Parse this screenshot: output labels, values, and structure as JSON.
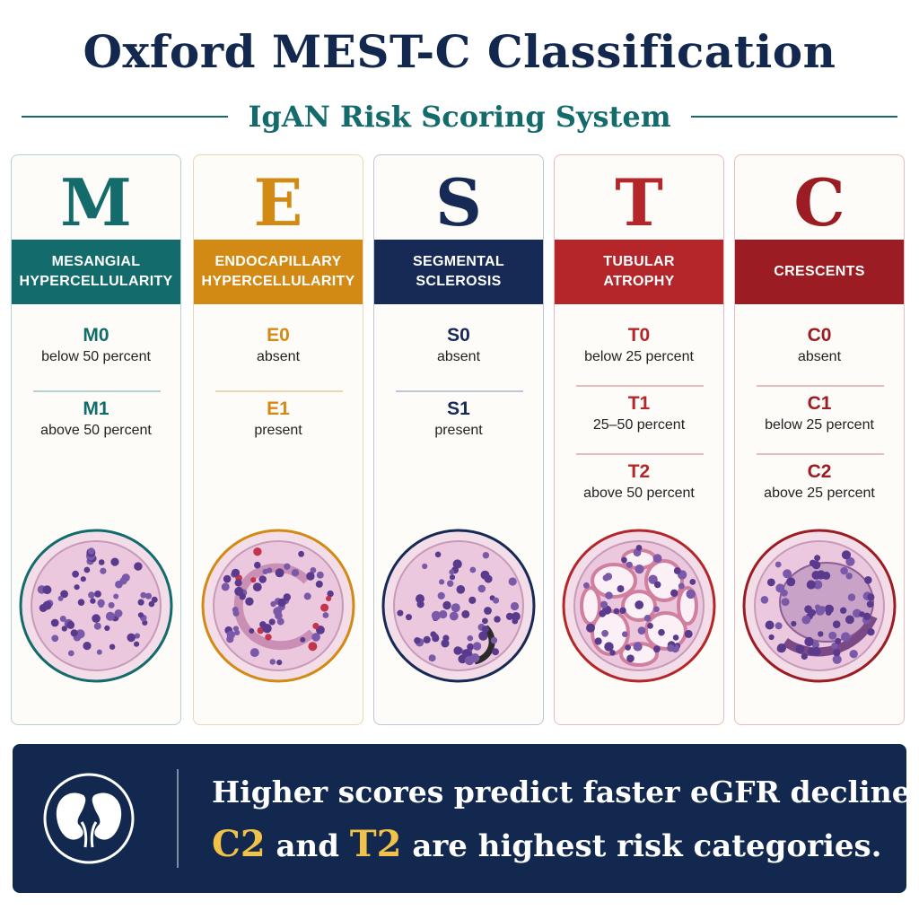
{
  "title": "Oxford MEST-C Classification",
  "subtitle": "IgAN Risk Scoring System",
  "colors": {
    "navy": "#13284f",
    "teal": "#136b6b",
    "highlight": "#f1c24a"
  },
  "columns": [
    {
      "letter": "M",
      "label": "MESANGIAL\nHYPERCELLULARITY",
      "color": "#136b6b",
      "tint": "#b4d2cf",
      "grades": [
        {
          "code": "M0",
          "desc": "below 50 percent"
        },
        {
          "code": "M1",
          "desc": "above 50 percent"
        }
      ]
    },
    {
      "letter": "E",
      "label": "ENDOCAPILLARY\nHYPERCELLULARITY",
      "color": "#d38a15",
      "tint": "#ecd6ad",
      "grades": [
        {
          "code": "E0",
          "desc": "absent"
        },
        {
          "code": "E1",
          "desc": "present"
        }
      ]
    },
    {
      "letter": "S",
      "label": "SEGMENTAL\nSCLEROSIS",
      "color": "#172a55",
      "tint": "#bfc6d6",
      "grades": [
        {
          "code": "S0",
          "desc": "absent"
        },
        {
          "code": "S1",
          "desc": "present"
        }
      ]
    },
    {
      "letter": "T",
      "label": "TUBULAR\nATROPHY",
      "color": "#b5262a",
      "tint": "#e8bcbc",
      "grades": [
        {
          "code": "T0",
          "desc": "below 25 percent"
        },
        {
          "code": "T1",
          "desc": "25–50 percent"
        },
        {
          "code": "T2",
          "desc": "above 50 percent"
        }
      ]
    },
    {
      "letter": "C",
      "label": "CRESCENTS",
      "color": "#9b1c22",
      "tint": "#e5bdbd",
      "grades": [
        {
          "code": "C0",
          "desc": "absent"
        },
        {
          "code": "C1",
          "desc": "below 25 percent"
        },
        {
          "code": "C2",
          "desc": "above 25 percent"
        }
      ]
    }
  ],
  "banner": {
    "icon": "kidney-icon",
    "line1": "Higher scores predict faster eGFR decline.",
    "line2_hl1": "C2",
    "line2_mid": " and ",
    "line2_hl2": "T2",
    "line2_end": " are highest risk categories."
  }
}
